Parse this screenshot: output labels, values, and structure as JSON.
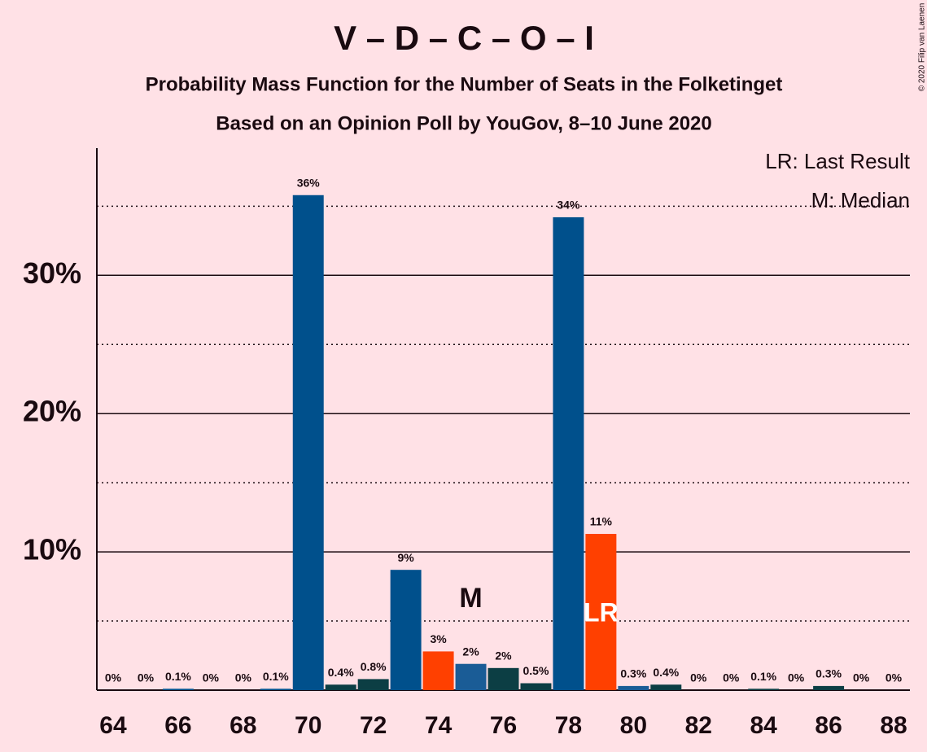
{
  "chart_data": {
    "type": "bar",
    "title": "V – D – C – O – I",
    "subtitle": "Probability Mass Function for the Number of Seats in the Folketinget",
    "subtitle2": "Based on an Opinion Poll by YouGov, 8–10 June 2020",
    "copyright": "© 2020 Filip van Laenen",
    "legend": [
      "LR: Last Result",
      "M: Median"
    ],
    "x": [
      64,
      65,
      66,
      67,
      68,
      69,
      70,
      71,
      72,
      73,
      74,
      75,
      76,
      77,
      78,
      79,
      80,
      81,
      82,
      83,
      84,
      85,
      86,
      87,
      88
    ],
    "values": [
      0,
      0,
      0.1,
      0,
      0,
      0.1,
      35.8,
      0.4,
      0.8,
      8.7,
      2.8,
      1.9,
      1.6,
      0.5,
      34.2,
      11.3,
      0.3,
      0.4,
      0,
      0,
      0.1,
      0,
      0.3,
      0,
      0
    ],
    "value_labels": [
      "0%",
      "0%",
      "0.1%",
      "0%",
      "0%",
      "0.1%",
      "36%",
      "0.4%",
      "0.8%",
      "9%",
      "3%",
      "2%",
      "2%",
      "0.5%",
      "34%",
      "11%",
      "0.3%",
      "0.4%",
      "0%",
      "0%",
      "0.1%",
      "0%",
      "0.3%",
      "0%",
      "0%"
    ],
    "colors": [
      "#00508c",
      "#00508c",
      "#00508c",
      "#00508c",
      "#00508c",
      "#00508c",
      "#00508c",
      "#0c3e44",
      "#0c3e44",
      "#00508c",
      "#ff4000",
      "#1a5c96",
      "#0c3e44",
      "#0c3e44",
      "#00508c",
      "#ff4000",
      "#1a5c96",
      "#0c3e44",
      "#0c3e44",
      "#0c3e44",
      "#0c3e44",
      "#0c3e44",
      "#0c3e44",
      "#0c3e44",
      "#0c3e44"
    ],
    "xlim": [
      63.5,
      88.5
    ],
    "xticks": [
      64,
      66,
      68,
      70,
      72,
      74,
      76,
      78,
      80,
      82,
      84,
      86,
      88
    ],
    "ylim": [
      0,
      39.2
    ],
    "yticks": [
      {
        "value": 10,
        "label": "10%"
      },
      {
        "value": 20,
        "label": "20%"
      },
      {
        "value": 30,
        "label": "30%"
      }
    ],
    "minor_yticks": [
      5,
      15,
      25,
      35
    ],
    "grid": true,
    "median": 75,
    "median_label": "M",
    "last_result": 79,
    "last_result_label": "LR"
  }
}
